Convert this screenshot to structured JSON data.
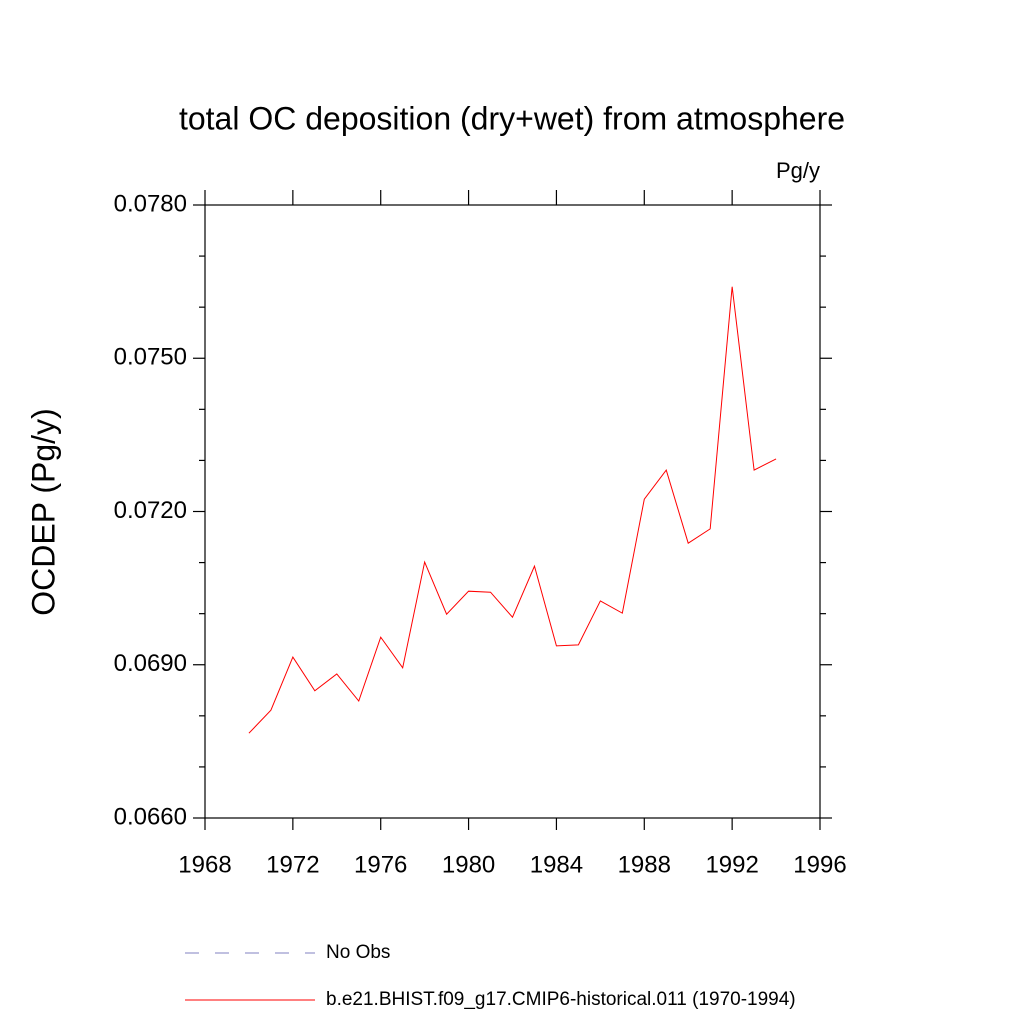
{
  "chart_data": {
    "type": "line",
    "title": "total OC deposition (dry+wet) from atmosphere",
    "units": "Pg/y",
    "y_label": "OCDEP  (Pg/y)",
    "x": [
      1970,
      1971,
      1972,
      1973,
      1974,
      1975,
      1976,
      1977,
      1978,
      1979,
      1980,
      1981,
      1982,
      1983,
      1984,
      1985,
      1986,
      1987,
      1988,
      1989,
      1990,
      1991,
      1992,
      1993,
      1994
    ],
    "series": [
      {
        "name": "No Obs",
        "color": "#8080c0",
        "dash": "dashed",
        "values": [
          null,
          null,
          null,
          null,
          null,
          null,
          null,
          null,
          null,
          null,
          null,
          null,
          null,
          null,
          null,
          null,
          null,
          null,
          null,
          null,
          null,
          null,
          null,
          null,
          null
        ]
      },
      {
        "name": "b.e21.BHIST.f09_g17.CMIP6-historical.011 (1970-1994)",
        "color": "#ff0000",
        "dash": "solid",
        "values": [
          0.06766,
          0.06811,
          0.06915,
          0.06849,
          0.06882,
          0.06829,
          0.06954,
          0.06894,
          0.07101,
          0.06999,
          0.07044,
          0.07042,
          0.06993,
          0.07093,
          0.06937,
          0.06939,
          0.07025,
          0.07001,
          0.07224,
          0.07281,
          0.07138,
          0.07166,
          0.0764,
          0.07281,
          0.07303
        ]
      }
    ],
    "xlim": [
      1968,
      1996
    ],
    "xticks": [
      1968,
      1972,
      1976,
      1980,
      1984,
      1988,
      1992,
      1996
    ],
    "ylim": [
      0.066,
      0.078
    ],
    "yticks": [
      {
        "value": 0.066,
        "label": "0.0660"
      },
      {
        "value": 0.069,
        "label": "0.0690"
      },
      {
        "value": 0.072,
        "label": "0.0720"
      },
      {
        "value": 0.075,
        "label": "0.0750"
      },
      {
        "value": 0.078,
        "label": "0.0780"
      }
    ],
    "yminorticks": [
      0.067,
      0.068,
      0.07,
      0.071,
      0.073,
      0.074,
      0.076,
      0.077
    ]
  }
}
